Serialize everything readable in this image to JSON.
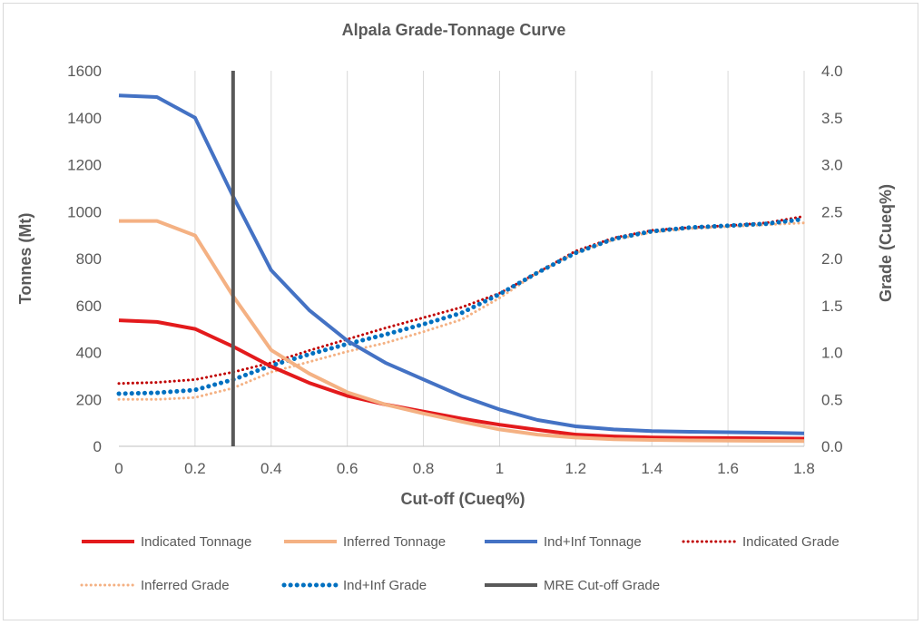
{
  "chart_data": {
    "type": "line",
    "title": "Alpala Grade-Tonnage Curve",
    "xlabel": "Cut-off (Cueq%)",
    "ylabel": "Tonnes (Mt)",
    "y2label": "Grade (Cueq%)",
    "xlim": [
      0,
      1.8
    ],
    "ylim": [
      0,
      1600
    ],
    "y2lim": [
      0,
      4.0
    ],
    "x_ticks": [
      "0",
      "0.2",
      "0.4",
      "0.6",
      "0.8",
      "1",
      "1.2",
      "1.4",
      "1.6",
      "1.8"
    ],
    "y_ticks": [
      "0",
      "200",
      "400",
      "600",
      "800",
      "1000",
      "1200",
      "1400",
      "1600"
    ],
    "y2_ticks": [
      "0.0",
      "0.5",
      "1.0",
      "1.5",
      "2.0",
      "2.5",
      "3.0",
      "3.5",
      "4.0"
    ],
    "grid": "vertical",
    "legend_position": "bottom",
    "x": [
      0,
      0.1,
      0.2,
      0.3,
      0.4,
      0.5,
      0.6,
      0.7,
      0.8,
      0.9,
      1.0,
      1.1,
      1.2,
      1.3,
      1.4,
      1.5,
      1.6,
      1.7,
      1.8
    ],
    "series": [
      {
        "name": "Indicated Tonnage",
        "axis": "left",
        "style": "solid",
        "color": "#e31a1c",
        "values": [
          537,
          530,
          500,
          425,
          340,
          270,
          215,
          178,
          148,
          118,
          92,
          70,
          50,
          42,
          38,
          36,
          35,
          34,
          33
        ]
      },
      {
        "name": "Inferred Tonnage",
        "axis": "left",
        "style": "solid",
        "color": "#f4b183",
        "values": [
          960,
          960,
          898,
          640,
          410,
          310,
          230,
          178,
          140,
          105,
          72,
          50,
          37,
          30,
          27,
          25,
          24,
          23,
          22
        ]
      },
      {
        "name": "Ind+Inf Tonnage",
        "axis": "left",
        "style": "solid",
        "color": "#4472c4",
        "values": [
          1495,
          1488,
          1400,
          1065,
          750,
          580,
          450,
          356,
          285,
          214,
          157,
          112,
          85,
          72,
          65,
          62,
          60,
          58,
          55
        ]
      },
      {
        "name": "Indicated Grade",
        "axis": "right",
        "style": "dotted",
        "color": "#c00000",
        "values": [
          0.67,
          0.68,
          0.71,
          0.79,
          0.89,
          1.02,
          1.14,
          1.26,
          1.37,
          1.48,
          1.63,
          1.85,
          2.08,
          2.22,
          2.3,
          2.33,
          2.35,
          2.38,
          2.45
        ]
      },
      {
        "name": "Inferred Grade",
        "axis": "right",
        "style": "dotted",
        "color": "#f4b183",
        "values": [
          0.5,
          0.5,
          0.52,
          0.62,
          0.79,
          0.9,
          1.01,
          1.1,
          1.22,
          1.35,
          1.58,
          1.85,
          2.06,
          2.2,
          2.28,
          2.32,
          2.34,
          2.36,
          2.38
        ]
      },
      {
        "name": "Ind+Inf Grade",
        "axis": "right",
        "style": "dotted",
        "color": "#0070c0",
        "values": [
          0.56,
          0.57,
          0.6,
          0.71,
          0.86,
          0.98,
          1.09,
          1.19,
          1.3,
          1.42,
          1.62,
          1.85,
          2.06,
          2.21,
          2.29,
          2.33,
          2.35,
          2.37,
          2.42
        ]
      }
    ],
    "vlines": [
      {
        "name": "MRE Cut-off Grade",
        "x": 0.3,
        "color": "#595959"
      }
    ]
  }
}
